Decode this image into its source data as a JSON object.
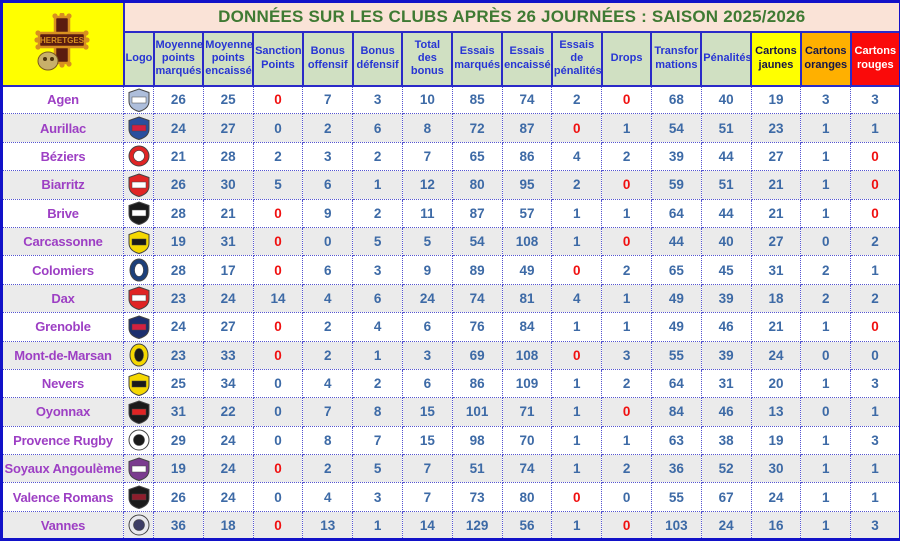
{
  "title": "DONNÉES SUR LES CLUBS APRÈS 26 JOURNÉES : SAISON 2025/2026",
  "corner_logo": {
    "name": "heretges-occitan-cross",
    "background": "#ffff00",
    "cross_color": "#5a1c10",
    "outline_color": "#d89020"
  },
  "colors": {
    "title_bg": "#fae3d7",
    "title_text": "#3f7a33",
    "header_bg": "#d0e0c2",
    "header_text": "#2735d4",
    "grid_blue": "#2a2ac8",
    "outer_border": "#1212c8",
    "value_blue": "#3d6aa6",
    "value_red": "#f01010",
    "club_purple": "#9d3fc4",
    "stripe_gray": "#ebebeb",
    "cartons_jaunes_bg": "#ffff00",
    "cartons_oranges_bg": "#ffb000",
    "cartons_rouges_bg": "#fa0a0a"
  },
  "columns": [
    {
      "key": "logo",
      "label": "Logo",
      "style": "normal"
    },
    {
      "key": "moyenne-points-marques",
      "label": "Moyenne points marqués",
      "style": "normal"
    },
    {
      "key": "moyenne-points-encaisses",
      "label": "Moyenne points encaissés",
      "style": "normal"
    },
    {
      "key": "sanctions-points",
      "label": "Sanctions Points",
      "style": "normal"
    },
    {
      "key": "bonus-offensif",
      "label": "Bonus offensif",
      "style": "normal"
    },
    {
      "key": "bonus-defensif",
      "label": "Bonus défensif",
      "style": "normal"
    },
    {
      "key": "total-des-bonus",
      "label": "Total des bonus",
      "style": "normal"
    },
    {
      "key": "essais-marques",
      "label": "Essais marqués",
      "style": "normal"
    },
    {
      "key": "essais-encaisses",
      "label": "Essais encaissés",
      "style": "normal"
    },
    {
      "key": "essais-de-penalites",
      "label": "Essais de pénalités",
      "style": "normal"
    },
    {
      "key": "drops",
      "label": "Drops",
      "style": "normal"
    },
    {
      "key": "transformations",
      "label": "Transfor mations",
      "style": "normal"
    },
    {
      "key": "penalites",
      "label": "Pénalités",
      "style": "normal"
    },
    {
      "key": "cartons-jaunes",
      "label": "Cartons jaunes",
      "style": "yellow"
    },
    {
      "key": "cartons-oranges",
      "label": "Cartons oranges",
      "style": "orange"
    },
    {
      "key": "cartons-rouges",
      "label": "Cartons rouges",
      "style": "red"
    }
  ],
  "clubs": [
    {
      "name": "Agen",
      "logo": {
        "shape": "shield",
        "primary": "#aebedb",
        "secondary": "#ffffff"
      },
      "values": [
        26,
        25,
        0,
        7,
        3,
        10,
        85,
        74,
        2,
        0,
        68,
        40,
        19,
        3,
        3
      ],
      "red_cells": [
        2,
        9
      ]
    },
    {
      "name": "Aurillac",
      "logo": {
        "shape": "shield",
        "primary": "#2a4f9e",
        "secondary": "#d42040"
      },
      "values": [
        24,
        27,
        0,
        2,
        6,
        8,
        72,
        87,
        0,
        1,
        54,
        51,
        23,
        1,
        1
      ],
      "red_cells": [
        8
      ]
    },
    {
      "name": "Béziers",
      "logo": {
        "shape": "circle",
        "primary": "#e02424",
        "secondary": "#ffffff"
      },
      "values": [
        21,
        28,
        2,
        3,
        2,
        7,
        65,
        86,
        4,
        2,
        39,
        44,
        27,
        1,
        0
      ],
      "red_cells": [
        14
      ]
    },
    {
      "name": "Biarritz",
      "logo": {
        "shape": "shield",
        "primary": "#e02424",
        "secondary": "#ffffff"
      },
      "values": [
        26,
        30,
        5,
        6,
        1,
        12,
        80,
        95,
        2,
        0,
        59,
        51,
        21,
        1,
        0
      ],
      "red_cells": [
        9,
        14
      ]
    },
    {
      "name": "Brive",
      "logo": {
        "shape": "shield",
        "primary": "#1a1a1a",
        "secondary": "#ffffff"
      },
      "values": [
        28,
        21,
        0,
        9,
        2,
        11,
        87,
        57,
        1,
        1,
        64,
        44,
        21,
        1,
        0
      ],
      "red_cells": [
        2,
        14
      ]
    },
    {
      "name": "Carcassonne",
      "logo": {
        "shape": "shield",
        "primary": "#f5d800",
        "secondary": "#1a1a1a"
      },
      "values": [
        19,
        31,
        0,
        0,
        5,
        5,
        54,
        108,
        1,
        0,
        44,
        40,
        27,
        0,
        2
      ],
      "red_cells": [
        2,
        9
      ]
    },
    {
      "name": "Colomiers",
      "logo": {
        "shape": "oval",
        "primary": "#1c3f7a",
        "secondary": "#ffffff"
      },
      "values": [
        28,
        17,
        0,
        6,
        3,
        9,
        89,
        49,
        0,
        2,
        65,
        45,
        31,
        2,
        1
      ],
      "red_cells": [
        2,
        8
      ]
    },
    {
      "name": "Dax",
      "logo": {
        "shape": "shield",
        "primary": "#e02424",
        "secondary": "#ffffff"
      },
      "values": [
        23,
        24,
        14,
        4,
        6,
        24,
        74,
        81,
        4,
        1,
        49,
        39,
        18,
        2,
        2
      ],
      "red_cells": []
    },
    {
      "name": "Grenoble",
      "logo": {
        "shape": "shield",
        "primary": "#1c2f6e",
        "secondary": "#d42040"
      },
      "values": [
        24,
        27,
        0,
        2,
        4,
        6,
        76,
        84,
        1,
        1,
        49,
        46,
        21,
        1,
        0
      ],
      "red_cells": [
        2,
        14
      ]
    },
    {
      "name": "Mont-de-Marsan",
      "logo": {
        "shape": "oval",
        "primary": "#f5d800",
        "secondary": "#1a1a1a"
      },
      "values": [
        23,
        33,
        0,
        2,
        1,
        3,
        69,
        108,
        0,
        3,
        55,
        39,
        24,
        0,
        0
      ],
      "red_cells": [
        2,
        8
      ]
    },
    {
      "name": "Nevers",
      "logo": {
        "shape": "shield",
        "primary": "#f5d800",
        "secondary": "#1a1a1a"
      },
      "values": [
        25,
        34,
        0,
        4,
        2,
        6,
        86,
        109,
        1,
        2,
        64,
        31,
        20,
        1,
        3
      ],
      "red_cells": []
    },
    {
      "name": "Oyonnax",
      "logo": {
        "shape": "shield",
        "primary": "#1a1a1a",
        "secondary": "#e02424"
      },
      "values": [
        31,
        22,
        0,
        7,
        8,
        15,
        101,
        71,
        1,
        0,
        84,
        46,
        13,
        0,
        1
      ],
      "red_cells": [
        9
      ]
    },
    {
      "name": "Provence Rugby",
      "logo": {
        "shape": "circle",
        "primary": "#ffffff",
        "secondary": "#1a1a1a"
      },
      "values": [
        29,
        24,
        0,
        8,
        7,
        15,
        98,
        70,
        1,
        1,
        63,
        38,
        19,
        1,
        3
      ],
      "red_cells": []
    },
    {
      "name": "Soyaux Angoulème",
      "logo": {
        "shape": "shield",
        "primary": "#7a3b8f",
        "secondary": "#ffffff"
      },
      "values": [
        19,
        24,
        0,
        2,
        5,
        7,
        51,
        74,
        1,
        2,
        36,
        52,
        30,
        1,
        1
      ],
      "red_cells": [
        2
      ]
    },
    {
      "name": "Valence Romans",
      "logo": {
        "shape": "shield",
        "primary": "#1a1a1a",
        "secondary": "#8f1d2c"
      },
      "values": [
        26,
        24,
        0,
        4,
        3,
        7,
        73,
        80,
        0,
        0,
        55,
        67,
        24,
        1,
        1
      ],
      "red_cells": [
        8
      ]
    },
    {
      "name": "Vannes",
      "logo": {
        "shape": "circle",
        "primary": "#e8e8ee",
        "secondary": "#3d3d66"
      },
      "values": [
        36,
        18,
        0,
        13,
        1,
        14,
        129,
        56,
        1,
        0,
        103,
        24,
        16,
        1,
        3
      ],
      "red_cells": [
        2,
        9
      ]
    }
  ]
}
